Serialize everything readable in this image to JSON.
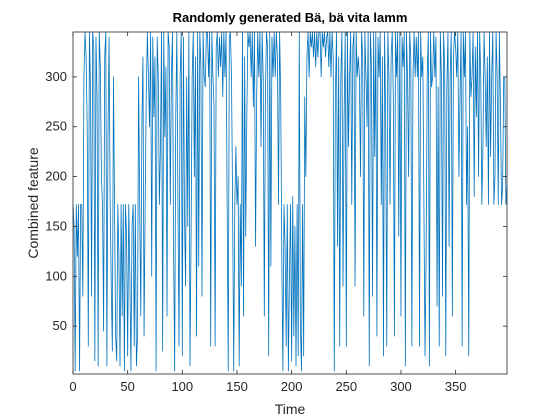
{
  "chart_data": {
    "type": "line",
    "title": "Randomly generated Bä, bä vita lamm",
    "xlabel": "Time",
    "ylabel": "Combined feature",
    "xlim": [
      0,
      397
    ],
    "ylim": [
      2,
      345
    ],
    "xticks": [
      0,
      50,
      100,
      150,
      200,
      250,
      300,
      350
    ],
    "yticks": [
      50,
      100,
      150,
      200,
      250,
      300
    ],
    "grid": false,
    "box": true,
    "series": [
      {
        "color": "#0072BD",
        "x": [
          0,
          1,
          2,
          3,
          4,
          5,
          6,
          7,
          8,
          9,
          10,
          11,
          12,
          13,
          14,
          15,
          16,
          17,
          18,
          19,
          20,
          21,
          22,
          23,
          24,
          25,
          26,
          27,
          28,
          29,
          30,
          31,
          32,
          33,
          34,
          35,
          36,
          37,
          38,
          39,
          40,
          41,
          42,
          43,
          44,
          45,
          46,
          47,
          48,
          49,
          50,
          51,
          52,
          53,
          54,
          55,
          56,
          57,
          58,
          59,
          60,
          61,
          62,
          63,
          64,
          65,
          66,
          67,
          68,
          69,
          70,
          71,
          72,
          73,
          74,
          75,
          76,
          77,
          78,
          79,
          80,
          81,
          82,
          83,
          84,
          85,
          86,
          87,
          88,
          89,
          90,
          91,
          92,
          93,
          94,
          95,
          96,
          97,
          98,
          99,
          100,
          101,
          102,
          103,
          104,
          105,
          106,
          107,
          108,
          109,
          110,
          111,
          112,
          113,
          114,
          115,
          116,
          117,
          118,
          119,
          120,
          121,
          122,
          123,
          124,
          125,
          126,
          127,
          128,
          129,
          130,
          131,
          132,
          133,
          134,
          135,
          136,
          137,
          138,
          139,
          140,
          141,
          142,
          143,
          144,
          145,
          146,
          147,
          148,
          149,
          150,
          151,
          152,
          153,
          154,
          155,
          156,
          157,
          158,
          159,
          160,
          161,
          162,
          163,
          164,
          165,
          166,
          167,
          168,
          169,
          170,
          171,
          172,
          173,
          174,
          175,
          176,
          177,
          178,
          179,
          180,
          181,
          182,
          183,
          184,
          185,
          186,
          187,
          188,
          189,
          190,
          191,
          192,
          193,
          194,
          195,
          196,
          197,
          198,
          199,
          200,
          201,
          202,
          203,
          204,
          205,
          206,
          207,
          208,
          209,
          210,
          211,
          212,
          213,
          214,
          215,
          216,
          217,
          218,
          219,
          220,
          221,
          222,
          223,
          224,
          225,
          226,
          227,
          228,
          229,
          230,
          231,
          232,
          233,
          234,
          235,
          236,
          237,
          238,
          239,
          240,
          241,
          242,
          243,
          244,
          245,
          246,
          247,
          248,
          249,
          250,
          251,
          252,
          253,
          254,
          255,
          256,
          257,
          258,
          259,
          260,
          261,
          262,
          263,
          264,
          265,
          266,
          267,
          268,
          269,
          270,
          271,
          272,
          273,
          274,
          275,
          276,
          277,
          278,
          279,
          280,
          281,
          282,
          283,
          284,
          285,
          286,
          287,
          288,
          289,
          290,
          291,
          292,
          293,
          294,
          295,
          296,
          297,
          298,
          299,
          300,
          301,
          302,
          303,
          304,
          305,
          306,
          307,
          308,
          309,
          310,
          311,
          312,
          313,
          314,
          315,
          316,
          317,
          318,
          319,
          320,
          321,
          322,
          323,
          324,
          325,
          326,
          327,
          328,
          329,
          330,
          331,
          332,
          333,
          334,
          335,
          336,
          337,
          338,
          339,
          340,
          341,
          342,
          343,
          344,
          345,
          346,
          347,
          348,
          349,
          350,
          351,
          352,
          353,
          354,
          355,
          356,
          357,
          358,
          359,
          360,
          361,
          362,
          363,
          364,
          365,
          366,
          367,
          368,
          369,
          370,
          371,
          372,
          373,
          374,
          375,
          376,
          377,
          378,
          379,
          380,
          381,
          382,
          383,
          384,
          385,
          386,
          387,
          388,
          389,
          390,
          391,
          392,
          393,
          394,
          395,
          396,
          397
        ],
        "y": [
          172,
          150,
          5,
          172,
          120,
          172,
          5,
          172,
          172,
          80,
          300,
          345,
          320,
          250,
          30,
          345,
          290,
          80,
          345,
          330,
          15,
          340,
          280,
          10,
          345,
          310,
          200,
          172,
          45,
          320,
          345,
          10,
          240,
          340,
          172,
          90,
          25,
          300,
          172,
          40,
          15,
          172,
          120,
          10,
          172,
          60,
          172,
          5,
          172,
          140,
          20,
          172,
          100,
          5,
          150,
          172,
          30,
          172,
          10,
          40,
          300,
          172,
          60,
          250,
          320,
          40,
          172,
          280,
          345,
          300,
          250,
          345,
          100,
          340,
          260,
          320,
          5,
          340,
          300,
          172,
          230,
          345,
          25,
          345,
          240,
          310,
          60,
          345,
          330,
          172,
          300,
          345,
          130,
          5,
          260,
          345,
          172,
          30,
          300,
          345,
          20,
          340,
          160,
          90,
          300,
          150,
          345,
          10,
          140,
          300,
          345,
          200,
          320,
          40,
          345,
          110,
          345,
          310,
          80,
          345,
          300,
          290,
          345,
          345,
          300,
          345,
          30,
          345,
          300,
          270,
          30,
          330,
          345,
          300,
          340,
          310,
          345,
          280,
          345,
          300,
          345,
          172,
          5,
          340,
          345,
          300,
          172,
          5,
          172,
          230,
          172,
          200,
          10,
          172,
          90,
          345,
          60,
          320,
          140,
          260,
          345,
          330,
          345,
          300,
          345,
          270,
          345,
          130,
          280,
          345,
          300,
          345,
          230,
          345,
          300,
          60,
          280,
          345,
          330,
          20,
          345,
          110,
          340,
          300,
          345,
          300,
          345,
          320,
          172,
          345,
          280,
          120,
          5,
          172,
          130,
          30,
          172,
          5,
          100,
          172,
          15,
          180,
          40,
          150,
          10,
          172,
          20,
          345,
          50,
          5,
          172,
          20,
          280,
          200,
          320,
          345,
          300,
          345,
          330,
          345,
          320,
          345,
          310,
          345,
          320,
          345,
          345,
          300,
          345,
          330,
          345,
          320,
          340,
          345,
          310,
          345,
          300,
          345,
          320,
          5,
          280,
          345,
          130,
          320,
          30,
          300,
          345,
          90,
          260,
          345,
          30,
          345,
          230,
          300,
          345,
          172,
          330,
          345,
          90,
          345,
          300,
          320,
          300,
          200,
          345,
          320,
          60,
          345,
          300,
          250,
          345,
          10,
          345,
          310,
          80,
          345,
          220,
          345,
          40,
          340,
          300,
          345,
          172,
          320,
          20,
          345,
          260,
          30,
          345,
          300,
          172,
          320,
          345,
          280,
          40,
          345,
          300,
          345,
          140,
          345,
          60,
          340,
          310,
          345,
          10,
          345,
          300,
          200,
          345,
          320,
          30,
          300,
          345,
          300,
          340,
          300,
          345,
          30,
          345,
          300,
          320,
          170,
          20,
          120,
          300,
          345,
          10,
          345,
          290,
          300,
          345,
          300,
          340,
          70,
          290,
          30,
          345,
          300,
          80,
          345,
          310,
          20,
          290,
          345,
          130,
          300,
          345,
          60,
          320,
          345,
          330,
          300,
          345,
          200,
          280,
          345,
          30,
          345,
          300,
          345,
          172,
          250,
          20,
          345,
          280,
          300,
          345,
          180,
          330,
          260,
          345,
          200,
          345,
          300,
          172,
          230,
          345,
          300,
          230,
          320,
          172,
          345,
          220,
          300,
          345,
          172,
          200,
          345,
          300,
          172,
          345,
          270,
          172,
          190,
          300,
          300,
          172,
          190
        ]
      }
    ]
  }
}
